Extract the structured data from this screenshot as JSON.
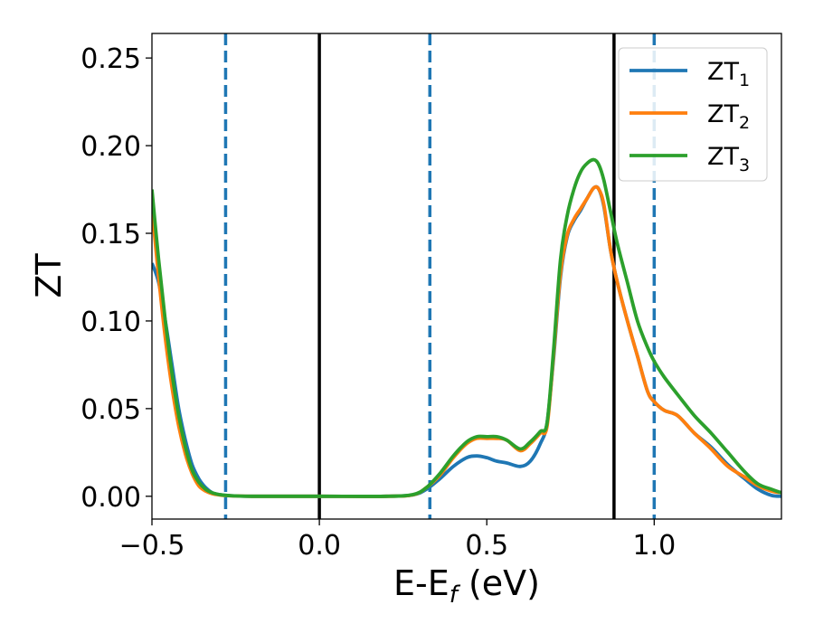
{
  "chart_data": {
    "type": "line",
    "title": "",
    "xlabel": {
      "main": "E-E",
      "sub": "f",
      "unit": " (eV)"
    },
    "ylabel": "ZT",
    "xlim": [
      -0.5,
      1.38
    ],
    "ylim": [
      -0.013,
      0.264
    ],
    "xticks": [
      -0.5,
      0.0,
      0.5,
      1.0
    ],
    "xtick_labels": [
      "−0.5",
      "0.0",
      "0.5",
      "1.0"
    ],
    "yticks": [
      0.0,
      0.05,
      0.1,
      0.15,
      0.2,
      0.25
    ],
    "ytick_labels": [
      "0.00",
      "0.05",
      "0.10",
      "0.15",
      "0.20",
      "0.25"
    ],
    "grid": false,
    "legend_position": "top-right",
    "vlines": [
      {
        "x": -0.28,
        "style": "dashed",
        "color": "#1f77b4"
      },
      {
        "x": 0.0,
        "style": "solid",
        "color": "#000000"
      },
      {
        "x": 0.33,
        "style": "dashed",
        "color": "#1f77b4"
      },
      {
        "x": 0.88,
        "style": "solid",
        "color": "#000000"
      },
      {
        "x": 1.0,
        "style": "dashed",
        "color": "#1f77b4"
      }
    ],
    "series": [
      {
        "name": "ZT",
        "sub": "1",
        "color": "#1f77b4",
        "x": [
          -0.5,
          -0.48,
          -0.46,
          -0.44,
          -0.42,
          -0.4,
          -0.38,
          -0.36,
          -0.34,
          -0.32,
          -0.3,
          -0.28,
          -0.25,
          -0.2,
          0.0,
          0.2,
          0.28,
          0.32,
          0.36,
          0.4,
          0.44,
          0.47,
          0.5,
          0.53,
          0.56,
          0.6,
          0.63,
          0.66,
          0.68,
          0.7,
          0.72,
          0.74,
          0.76,
          0.78,
          0.8,
          0.82,
          0.835,
          0.85,
          0.87,
          0.89,
          0.92,
          0.95,
          0.98,
          1.0,
          1.03,
          1.07,
          1.12,
          1.17,
          1.22,
          1.27,
          1.31,
          1.35,
          1.38
        ],
        "y": [
          0.133,
          0.122,
          0.1,
          0.075,
          0.05,
          0.032,
          0.018,
          0.01,
          0.005,
          0.002,
          0.001,
          0.0005,
          0.0002,
          0.0,
          0.0,
          0.0,
          0.0008,
          0.004,
          0.01,
          0.017,
          0.022,
          0.023,
          0.022,
          0.02,
          0.019,
          0.017,
          0.02,
          0.03,
          0.042,
          0.08,
          0.125,
          0.148,
          0.157,
          0.163,
          0.17,
          0.176,
          0.175,
          0.165,
          0.14,
          0.122,
          0.1,
          0.08,
          0.06,
          0.054,
          0.049,
          0.046,
          0.036,
          0.028,
          0.018,
          0.01,
          0.004,
          0.0005,
          0.0
        ]
      },
      {
        "name": "ZT",
        "sub": "2",
        "color": "#ff7f0e",
        "x": [
          -0.5,
          -0.48,
          -0.46,
          -0.44,
          -0.42,
          -0.4,
          -0.38,
          -0.36,
          -0.34,
          -0.32,
          -0.3,
          -0.28,
          -0.25,
          -0.2,
          0.0,
          0.2,
          0.28,
          0.32,
          0.36,
          0.4,
          0.44,
          0.47,
          0.5,
          0.53,
          0.56,
          0.6,
          0.63,
          0.66,
          0.68,
          0.7,
          0.72,
          0.74,
          0.76,
          0.78,
          0.8,
          0.82,
          0.835,
          0.85,
          0.87,
          0.89,
          0.92,
          0.95,
          0.98,
          1.0,
          1.03,
          1.07,
          1.12,
          1.17,
          1.22,
          1.27,
          1.31,
          1.35,
          1.38
        ],
        "y": [
          0.165,
          0.125,
          0.09,
          0.062,
          0.04,
          0.024,
          0.013,
          0.006,
          0.003,
          0.0015,
          0.0008,
          0.0004,
          0.0002,
          0.0,
          0.0,
          0.0,
          0.0008,
          0.005,
          0.012,
          0.022,
          0.03,
          0.033,
          0.033,
          0.033,
          0.032,
          0.026,
          0.03,
          0.036,
          0.04,
          0.082,
          0.127,
          0.149,
          0.158,
          0.164,
          0.17,
          0.176,
          0.175,
          0.166,
          0.14,
          0.122,
          0.1,
          0.08,
          0.06,
          0.054,
          0.049,
          0.046,
          0.036,
          0.027,
          0.017,
          0.011,
          0.006,
          0.003,
          0.002
        ]
      },
      {
        "name": "ZT",
        "sub": "3",
        "color": "#2ca02c",
        "x": [
          -0.5,
          -0.48,
          -0.46,
          -0.44,
          -0.42,
          -0.4,
          -0.38,
          -0.36,
          -0.34,
          -0.32,
          -0.3,
          -0.28,
          -0.25,
          -0.2,
          0.0,
          0.2,
          0.28,
          0.32,
          0.36,
          0.4,
          0.44,
          0.47,
          0.5,
          0.53,
          0.56,
          0.6,
          0.63,
          0.66,
          0.68,
          0.7,
          0.72,
          0.74,
          0.76,
          0.78,
          0.8,
          0.82,
          0.835,
          0.85,
          0.87,
          0.89,
          0.92,
          0.95,
          0.98,
          1.0,
          1.03,
          1.07,
          1.12,
          1.17,
          1.22,
          1.27,
          1.31,
          1.35,
          1.38
        ],
        "y": [
          0.175,
          0.135,
          0.1,
          0.07,
          0.046,
          0.028,
          0.015,
          0.008,
          0.004,
          0.002,
          0.001,
          0.0005,
          0.0002,
          0.0,
          0.0,
          0.0,
          0.001,
          0.005,
          0.013,
          0.023,
          0.031,
          0.034,
          0.034,
          0.034,
          0.032,
          0.027,
          0.031,
          0.037,
          0.042,
          0.085,
          0.135,
          0.16,
          0.175,
          0.185,
          0.19,
          0.192,
          0.189,
          0.18,
          0.162,
          0.144,
          0.122,
          0.1,
          0.085,
          0.077,
          0.068,
          0.058,
          0.046,
          0.036,
          0.025,
          0.014,
          0.007,
          0.004,
          0.002
        ]
      }
    ]
  }
}
